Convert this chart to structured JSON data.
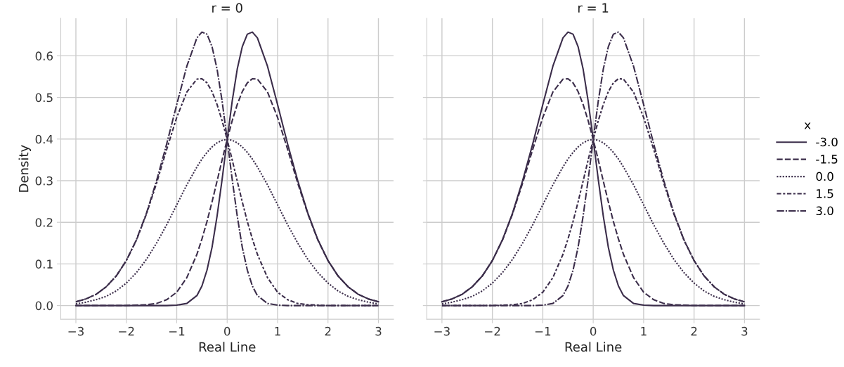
{
  "chart_data": [
    {
      "type": "line",
      "title": "r = 0",
      "xlabel": "Real Line",
      "ylabel": "Density",
      "xlim": [
        -3.3,
        3.3
      ],
      "ylim": [
        -0.033,
        0.69
      ],
      "xticks": [
        {
          "value": -3,
          "label": "−3"
        },
        {
          "value": -2,
          "label": "−2"
        },
        {
          "value": -1,
          "label": "−1"
        },
        0,
        1,
        2,
        3
      ],
      "yticks": [
        {
          "value": 0,
          "label": "0.0"
        },
        0.1,
        0.2,
        0.3,
        0.4,
        0.5,
        0.6
      ],
      "grid": true,
      "legend": false,
      "x": [
        -3,
        -2.8,
        -2.6,
        -2.4,
        -2.2,
        -2,
        -1.8,
        -1.6,
        -1.4,
        -1.2,
        -1,
        -0.8,
        -0.6,
        -0.5,
        -0.4,
        -0.3,
        -0.2,
        -0.1,
        0,
        0.1,
        0.2,
        0.3,
        0.4,
        0.5,
        0.6,
        0.8,
        1,
        1.2,
        1.4,
        1.6,
        1.8,
        2,
        2.2,
        2.4,
        2.6,
        2.8,
        3
      ],
      "series": [
        {
          "color": "#3b2d4a",
          "line_style": "solid",
          "values": [
            0,
            0,
            0,
            0,
            0,
            0,
            0,
            0,
            0,
            0,
            0.001,
            0.005,
            0.024,
            0.047,
            0.085,
            0.14,
            0.215,
            0.303,
            0.399,
            0.491,
            0.568,
            0.622,
            0.652,
            0.657,
            0.643,
            0.575,
            0.483,
            0.388,
            0.3,
            0.222,
            0.158,
            0.108,
            0.071,
            0.045,
            0.027,
            0.016,
            0.009
          ]
        },
        {
          "color": "#3b2d4a",
          "line_style": "dashed",
          "values": [
            0,
            0,
            0,
            0,
            0,
            0,
            0.001,
            0.002,
            0.005,
            0.014,
            0.032,
            0.067,
            0.123,
            0.16,
            0.202,
            0.249,
            0.299,
            0.35,
            0.399,
            0.444,
            0.483,
            0.514,
            0.535,
            0.545,
            0.544,
            0.513,
            0.452,
            0.375,
            0.294,
            0.22,
            0.157,
            0.108,
            0.071,
            0.045,
            0.027,
            0.016,
            0.009
          ]
        },
        {
          "color": "#3b2d4a",
          "line_style": "dotted",
          "values": [
            0.004,
            0.008,
            0.014,
            0.022,
            0.035,
            0.054,
            0.079,
            0.111,
            0.15,
            0.194,
            0.242,
            0.29,
            0.333,
            0.352,
            0.368,
            0.381,
            0.391,
            0.397,
            0.399,
            0.397,
            0.391,
            0.381,
            0.368,
            0.352,
            0.333,
            0.29,
            0.242,
            0.194,
            0.15,
            0.111,
            0.079,
            0.054,
            0.035,
            0.022,
            0.014,
            0.008,
            0.004
          ]
        },
        {
          "color": "#3b2d4a",
          "line_style": "dashdotdot",
          "values": [
            0.009,
            0.016,
            0.027,
            0.045,
            0.071,
            0.108,
            0.157,
            0.22,
            0.294,
            0.375,
            0.452,
            0.513,
            0.544,
            0.545,
            0.535,
            0.514,
            0.483,
            0.444,
            0.399,
            0.35,
            0.299,
            0.249,
            0.202,
            0.16,
            0.123,
            0.067,
            0.032,
            0.014,
            0.005,
            0.002,
            0.001,
            0,
            0,
            0,
            0,
            0,
            0
          ]
        },
        {
          "color": "#3b2d4a",
          "line_style": "dashdot",
          "values": [
            0.009,
            0.016,
            0.027,
            0.045,
            0.071,
            0.108,
            0.158,
            0.222,
            0.3,
            0.388,
            0.483,
            0.575,
            0.643,
            0.657,
            0.652,
            0.622,
            0.568,
            0.491,
            0.399,
            0.303,
            0.215,
            0.14,
            0.085,
            0.047,
            0.024,
            0.005,
            0.001,
            0,
            0,
            0,
            0,
            0,
            0,
            0,
            0,
            0,
            0
          ]
        }
      ]
    },
    {
      "type": "line",
      "title": "r = 1",
      "xlabel": "Real Line",
      "legend_title": "x",
      "xlim": [
        -3.3,
        3.3
      ],
      "ylim": [
        -0.033,
        0.69
      ],
      "xticks": [
        {
          "value": -3,
          "label": "−3"
        },
        {
          "value": -2,
          "label": "−2"
        },
        {
          "value": -1,
          "label": "−1"
        },
        0,
        1,
        2,
        3
      ],
      "yticks": [
        {
          "value": 0,
          "label": null
        },
        {
          "value": 0.1,
          "label": null
        },
        {
          "value": 0.2,
          "label": null
        },
        {
          "value": 0.3,
          "label": null
        },
        {
          "value": 0.4,
          "label": null
        },
        {
          "value": 0.5,
          "label": null
        },
        {
          "value": 0.6,
          "label": null
        }
      ],
      "tick_labels": "x",
      "grid": true,
      "legend": "right",
      "x": [
        -3,
        -2.8,
        -2.6,
        -2.4,
        -2.2,
        -2,
        -1.8,
        -1.6,
        -1.4,
        -1.2,
        -1,
        -0.8,
        -0.6,
        -0.5,
        -0.4,
        -0.3,
        -0.2,
        -0.1,
        0,
        0.1,
        0.2,
        0.3,
        0.4,
        0.5,
        0.6,
        0.8,
        1,
        1.2,
        1.4,
        1.6,
        1.8,
        2,
        2.2,
        2.4,
        2.6,
        2.8,
        3
      ],
      "series": [
        {
          "name": "-3.0",
          "color": "#3b2d4a",
          "line_style": "solid",
          "values": [
            0.009,
            0.016,
            0.027,
            0.045,
            0.071,
            0.108,
            0.158,
            0.222,
            0.3,
            0.388,
            0.483,
            0.575,
            0.643,
            0.657,
            0.652,
            0.622,
            0.568,
            0.491,
            0.399,
            0.303,
            0.215,
            0.14,
            0.085,
            0.047,
            0.024,
            0.005,
            0.001,
            0,
            0,
            0,
            0,
            0,
            0,
            0,
            0,
            0,
            0
          ]
        },
        {
          "name": "-1.5",
          "color": "#3b2d4a",
          "line_style": "dashed",
          "values": [
            0.009,
            0.016,
            0.027,
            0.045,
            0.071,
            0.108,
            0.157,
            0.22,
            0.294,
            0.375,
            0.452,
            0.513,
            0.544,
            0.545,
            0.535,
            0.514,
            0.483,
            0.444,
            0.399,
            0.35,
            0.299,
            0.249,
            0.202,
            0.16,
            0.123,
            0.067,
            0.032,
            0.014,
            0.005,
            0.002,
            0.001,
            0,
            0,
            0,
            0,
            0,
            0
          ]
        },
        {
          "name": "0.0",
          "color": "#3b2d4a",
          "line_style": "dotted",
          "values": [
            0.004,
            0.008,
            0.014,
            0.022,
            0.035,
            0.054,
            0.079,
            0.111,
            0.15,
            0.194,
            0.242,
            0.29,
            0.333,
            0.352,
            0.368,
            0.381,
            0.391,
            0.397,
            0.399,
            0.397,
            0.391,
            0.381,
            0.368,
            0.352,
            0.333,
            0.29,
            0.242,
            0.194,
            0.15,
            0.111,
            0.079,
            0.054,
            0.035,
            0.022,
            0.014,
            0.008,
            0.004
          ]
        },
        {
          "name": "1.5",
          "color": "#3b2d4a",
          "line_style": "dashdotdot",
          "values": [
            0,
            0,
            0,
            0,
            0,
            0,
            0.001,
            0.002,
            0.005,
            0.014,
            0.032,
            0.067,
            0.123,
            0.16,
            0.202,
            0.249,
            0.299,
            0.35,
            0.399,
            0.444,
            0.483,
            0.514,
            0.535,
            0.545,
            0.544,
            0.513,
            0.452,
            0.375,
            0.294,
            0.22,
            0.157,
            0.108,
            0.071,
            0.045,
            0.027,
            0.016,
            0.009
          ]
        },
        {
          "name": "3.0",
          "color": "#3b2d4a",
          "line_style": "dashdot",
          "values": [
            0,
            0,
            0,
            0,
            0,
            0,
            0,
            0,
            0,
            0,
            0.001,
            0.005,
            0.024,
            0.047,
            0.085,
            0.14,
            0.215,
            0.303,
            0.399,
            0.491,
            0.568,
            0.622,
            0.652,
            0.657,
            0.643,
            0.575,
            0.483,
            0.388,
            0.3,
            0.222,
            0.158,
            0.108,
            0.071,
            0.045,
            0.027,
            0.016,
            0.009
          ]
        }
      ]
    }
  ]
}
